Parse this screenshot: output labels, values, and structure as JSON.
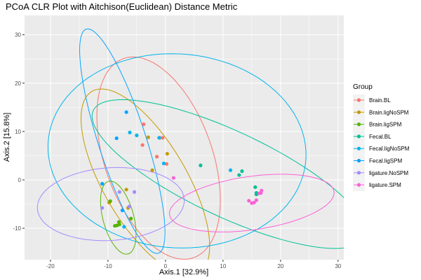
{
  "chart_data": {
    "type": "scatter",
    "title": "PCoA CLR Plot with Aitchison(Euclidean) Distance Metric",
    "xlabel": "Axis.1   [32.9%]",
    "ylabel": "Axis.2   [15.8%]",
    "xlim": [
      -24.5,
      31
    ],
    "ylim": [
      -16.5,
      34
    ],
    "x_ticks": [
      -20,
      -10,
      0,
      10,
      20,
      30
    ],
    "y_ticks": [
      -10,
      0,
      10,
      20,
      30
    ],
    "x_tick_labels": [
      "-20",
      "-10",
      "0",
      "10",
      "20",
      "30"
    ],
    "y_tick_labels": [
      "-10",
      "0",
      "10",
      "20",
      "30"
    ],
    "grid": true,
    "panel_background": "#ebebeb",
    "legend_title": "Group",
    "legend_position": "right",
    "series": [
      {
        "name": "Brain.BL",
        "color": "#F8766D",
        "points": [
          [
            -3.8,
            11.5
          ],
          [
            -4.0,
            7.2
          ],
          [
            -1.5,
            4.8
          ],
          [
            -1.0,
            8.7
          ],
          [
            -0.5,
            8.7
          ],
          [
            0.2,
            3.3
          ]
        ],
        "ellipse": {
          "cx": -1.2,
          "cy": 4.5,
          "rx": 9.5,
          "ry": 21.5,
          "angle": 15
        }
      },
      {
        "name": "Brain.ligNoSPM",
        "color": "#C49A00",
        "points": [
          [
            -3.0,
            8.8
          ],
          [
            0.3,
            5.4
          ],
          [
            -2.3,
            2.0
          ],
          [
            -9.8,
            -4.7
          ],
          [
            -6.5,
            -5.8
          ],
          [
            -6.8,
            -2.0
          ]
        ],
        "ellipse": {
          "cx": -3.5,
          "cy": -0.5,
          "rx": 7.5,
          "ry": 21.0,
          "angle": 25
        }
      },
      {
        "name": "Brain.ligSPM",
        "color": "#53B400",
        "points": [
          [
            -8.8,
            -9.5
          ],
          [
            -8.4,
            -9.4
          ],
          [
            -8.0,
            -9.2
          ],
          [
            -6.0,
            -8.0
          ],
          [
            -9.6,
            -4.4
          ],
          [
            -8.1,
            -8.7
          ]
        ],
        "ellipse": {
          "cx": -8.2,
          "cy": -7.8,
          "rx": 2.7,
          "ry": 7.7,
          "angle": 12
        }
      },
      {
        "name": "Fecal.BL",
        "color": "#00C094",
        "points": [
          [
            6.1,
            3.0
          ],
          [
            13.3,
            1.8
          ],
          [
            12.8,
            1.0
          ],
          [
            15.6,
            -1.5
          ],
          [
            15.8,
            -2.7
          ],
          [
            15.8,
            -3.0
          ]
        ],
        "ellipse": {
          "cx": 11.0,
          "cy": 1.2,
          "rx": 27.0,
          "ry": 8.5,
          "angle": -30
        }
      },
      {
        "name": "Fecal.ligNoSPM",
        "color": "#00B6EB",
        "points": [
          [
            -5.0,
            9.2
          ],
          [
            -6.2,
            9.8
          ],
          [
            -1.1,
            8.7
          ],
          [
            11.3,
            2.0
          ],
          [
            -7.2,
            -9.7
          ],
          [
            -0.3,
            3.4
          ]
        ],
        "ellipse": {
          "cx": 2.0,
          "cy": 6.0,
          "rx": 22.5,
          "ry": 20.0,
          "angle": -10
        }
      },
      {
        "name": "Fecal.ligSPM",
        "color": "#06A4FF",
        "points": [
          [
            -6.8,
            14.0
          ],
          [
            -8.5,
            8.6
          ],
          [
            -11.0,
            -0.8
          ],
          [
            -7.5,
            -6.3
          ]
        ],
        "ellipse": {
          "cx": -7.5,
          "cy": 8.0,
          "rx": 4.2,
          "ry": 24.0,
          "angle": 15
        }
      },
      {
        "name": "ligature.NoSPM",
        "color": "#A58AFF",
        "points": [
          [
            -11.0,
            -5.8
          ],
          [
            -5.4,
            -2.5
          ],
          [
            -6.3,
            -5.5
          ],
          [
            -8.0,
            -2.5
          ]
        ],
        "ellipse": {
          "cx": -9.5,
          "cy": -5.0,
          "rx": 12.8,
          "ry": 7.5,
          "angle": 5
        }
      },
      {
        "name": "ligature.SPM",
        "color": "#FB61D7",
        "points": [
          [
            1.4,
            0.4
          ],
          [
            14.5,
            -4.3
          ],
          [
            15.0,
            -4.8
          ],
          [
            15.4,
            -4.7
          ],
          [
            15.8,
            -4.2
          ],
          [
            16.6,
            -2.7
          ],
          [
            16.7,
            -2.2
          ],
          [
            16.3,
            -2.8
          ]
        ],
        "ellipse": {
          "cx": 15.0,
          "cy": -4.8,
          "rx": 14.5,
          "ry": 5.5,
          "angle": 10
        }
      }
    ]
  }
}
